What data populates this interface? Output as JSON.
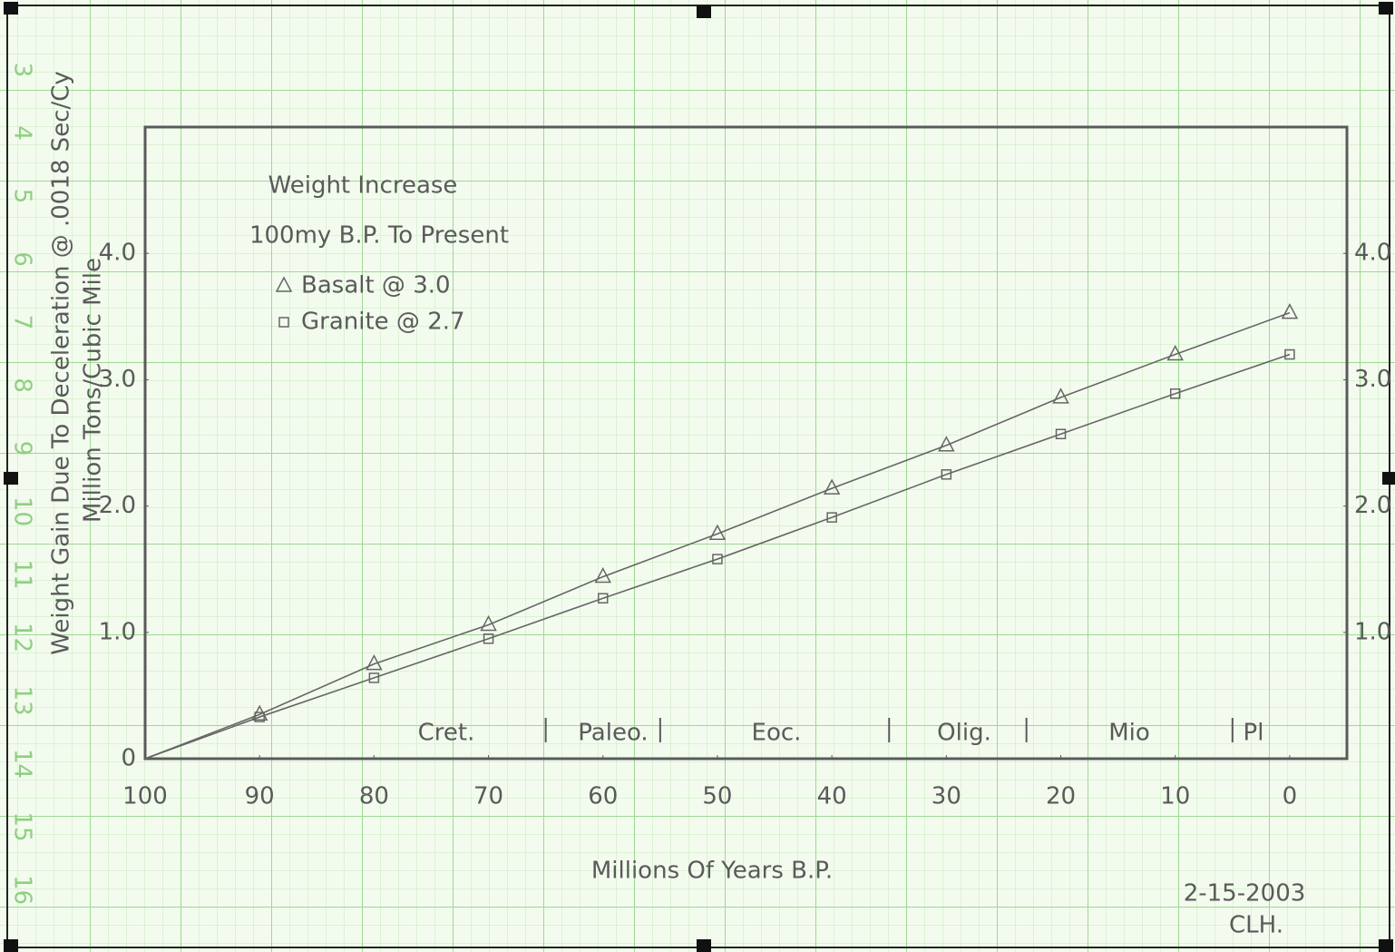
{
  "chart_data": {
    "type": "line",
    "title": "Weight Increase",
    "subtitle": "100my B.P. To Present",
    "x_label": "Millions Of Years B.P.",
    "y_label": "Weight Gain Due To Deceleration @ .0018 Sec/Cy",
    "y_label_2": "Million Tons/Cubic Mile",
    "x": [
      100,
      90,
      80,
      70,
      60,
      50,
      40,
      30,
      20,
      10,
      0
    ],
    "series": [
      {
        "name": "Basalt @ 3.0",
        "color": "#666666",
        "marker": "triangle",
        "values": [
          0,
          0.35,
          0.75,
          1.06,
          1.44,
          1.78,
          2.14,
          2.48,
          2.86,
          3.2,
          3.53
        ]
      },
      {
        "name": "Granite @ 2.7",
        "color": "#666666",
        "marker": "square",
        "values": [
          0,
          0.33,
          0.64,
          0.95,
          1.27,
          1.58,
          1.91,
          2.25,
          2.57,
          2.89,
          3.2
        ]
      }
    ],
    "xlim": [
      100,
      -5
    ],
    "xticks": [
      100,
      90,
      80,
      70,
      60,
      50,
      40,
      30,
      20,
      10,
      0
    ],
    "ylim": [
      0,
      5
    ],
    "yticks": [
      0,
      {
        "value": 1,
        "label": "1.0"
      },
      {
        "value": 2,
        "label": "2.0"
      },
      {
        "value": 3,
        "label": "3.0"
      },
      {
        "value": 4,
        "label": "4.0"
      }
    ],
    "y2lim": [
      0,
      5
    ],
    "y2ticks": [
      {
        "value": 1,
        "label": "1.0"
      },
      {
        "value": 2,
        "label": "2.0"
      },
      {
        "value": 3,
        "label": "3.0"
      },
      {
        "value": 4,
        "label": "4.0"
      }
    ],
    "epoch_boundaries": [
      65,
      55,
      35,
      23,
      5
    ],
    "epochs": [
      "Cret.",
      "Paleo.",
      "Eoc.",
      "Olig.",
      "Mio",
      "Pl"
    ],
    "date": "2-15-2003",
    "initials": "CLH."
  },
  "paper_margin_numbers": [
    "3",
    "4",
    "5",
    "6",
    "7",
    "8",
    "9",
    "10",
    "11",
    "12",
    "13",
    "14",
    "15",
    "16"
  ]
}
